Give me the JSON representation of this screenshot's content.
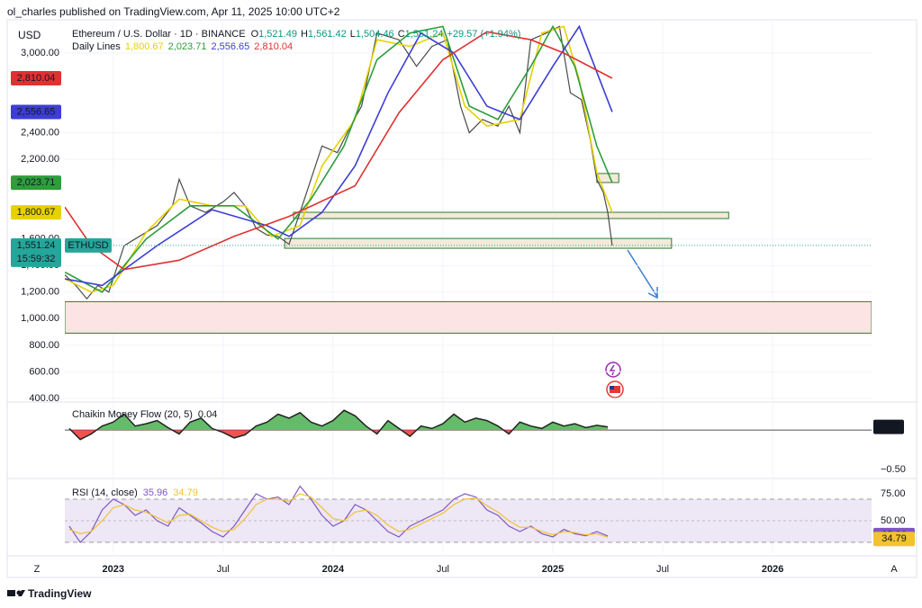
{
  "header": {
    "publisher": "ol_charles published on TradingView.com, Apr 11, 2025 10:00 UTC+2"
  },
  "footer": {
    "brand": "TradingView",
    "left_button": "Z",
    "right_button": "A"
  },
  "chart_data": [
    {
      "type": "line",
      "currency": "USD",
      "title": "Ethereum / U.S. Dollar · 1D · BINANCE",
      "ohlc_keys": [
        "O",
        "H",
        "L",
        "C"
      ],
      "ohlc": [
        1521.49,
        1561.42,
        1504.46,
        1551.24
      ],
      "ohlc_labels": [
        "1,521.49",
        "1,561.42",
        "1,504.46",
        "1,551.24"
      ],
      "change_label": "+29.57 (+1.94%)",
      "overlay_title": "Daily Lines",
      "symbol": "ETHUSD",
      "countdown": "15:59:32",
      "xlim": [
        2022.78,
        2026.45
      ],
      "xticks": [
        2023,
        {
          "value": 2023.5,
          "label": "Jul"
        },
        2024,
        {
          "value": 2024.5,
          "label": "Jul"
        },
        2025,
        {
          "value": 2025.5,
          "label": "Jul"
        },
        2026
      ],
      "ylim": [
        386,
        3230
      ],
      "yticks": [
        {
          "value": 400,
          "label": "400.00"
        },
        {
          "value": 600,
          "label": "600.00"
        },
        {
          "value": 800,
          "label": "800.00"
        },
        {
          "value": 1000,
          "label": "1,000.00"
        },
        {
          "value": 1200,
          "label": "1,200.00"
        },
        {
          "value": 1400,
          "label": "1,400.00"
        },
        {
          "value": 1600,
          "label": "1,600.00"
        },
        {
          "value": 2200,
          "label": "2,200.00"
        },
        {
          "value": 2400,
          "label": "2,400.00"
        },
        {
          "value": 3000,
          "label": "3,000.00"
        }
      ],
      "zones": [
        {
          "xlim": [
            2023.82,
            2025.8
          ],
          "ylim": [
            1754,
            1801
          ],
          "color": "#f3ead9"
        },
        {
          "xlim": [
            2023.78,
            2025.54
          ],
          "ylim": [
            1530,
            1604
          ],
          "color": "#f3ead9"
        },
        {
          "xlim": [
            2025.2,
            2025.3
          ],
          "ylim": [
            2025,
            2093
          ],
          "color": "#f3ead9"
        },
        {
          "xlim": [
            2022.78,
            2026.45
          ],
          "ylim": [
            891,
            1128
          ],
          "color": "#fde4e4"
        }
      ],
      "series": [
        {
          "name": "ETHUSD",
          "color": "#4a4a4a",
          "x": [
            2022.78,
            2022.83,
            2022.88,
            2022.93,
            2022.98,
            2023.05,
            2023.1,
            2023.15,
            2023.2,
            2023.27,
            2023.3,
            2023.35,
            2023.42,
            2023.5,
            2023.55,
            2023.6,
            2023.65,
            2023.7,
            2023.75,
            2023.8,
            2023.85,
            2023.9,
            2023.95,
            2024.02,
            2024.08,
            2024.13,
            2024.2,
            2024.3,
            2024.38,
            2024.45,
            2024.52,
            2024.58,
            2024.62,
            2024.68,
            2024.75,
            2024.8,
            2024.85,
            2024.9,
            2024.97,
            2025.03,
            2025.08,
            2025.13,
            2025.17,
            2025.2,
            2025.23,
            2025.25,
            2025.27
          ],
          "values": [
            1330,
            1250,
            1150,
            1250,
            1200,
            1550,
            1600,
            1650,
            1700,
            1850,
            2050,
            1850,
            1800,
            1880,
            1950,
            1850,
            1680,
            1630,
            1620,
            1560,
            1800,
            2050,
            2300,
            2250,
            2450,
            2600,
            3150,
            3100,
            2900,
            3050,
            3100,
            2600,
            2400,
            2500,
            2450,
            2600,
            2400,
            3100,
            3150,
            3200,
            2700,
            2650,
            2350,
            2050,
            1950,
            1800,
            1551.24
          ]
        },
        {
          "color": "#e6d200",
          "last_label": "1,800.67",
          "x": [
            2022.78,
            2022.9,
            2023.0,
            2023.15,
            2023.3,
            2023.45,
            2023.6,
            2023.72,
            2023.85,
            2023.95,
            2024.1,
            2024.2,
            2024.35,
            2024.5,
            2024.6,
            2024.7,
            2024.85,
            2024.95,
            2025.05,
            2025.12,
            2025.2,
            2025.27
          ],
          "values": [
            1300,
            1200,
            1250,
            1650,
            1900,
            1850,
            1850,
            1620,
            1700,
            2150,
            2500,
            3100,
            3050,
            3150,
            2600,
            2450,
            2500,
            3150,
            3200,
            2800,
            2100,
            1800.67
          ]
        },
        {
          "color": "#2e9d3a",
          "last_label": "2,023.71",
          "x": [
            2022.78,
            2022.95,
            2023.15,
            2023.35,
            2023.55,
            2023.75,
            2023.9,
            2024.05,
            2024.2,
            2024.35,
            2024.5,
            2024.62,
            2024.75,
            2024.9,
            2025.0,
            2025.1,
            2025.2,
            2025.27
          ],
          "values": [
            1350,
            1200,
            1600,
            1850,
            1850,
            1600,
            1900,
            2300,
            2950,
            3150,
            3200,
            2600,
            2500,
            2900,
            3200,
            2900,
            2300,
            2023.71
          ]
        },
        {
          "color": "#3d3dd6",
          "last_label": "2,556.65",
          "x": [
            2022.78,
            2022.95,
            2023.2,
            2023.45,
            2023.7,
            2023.8,
            2023.95,
            2024.1,
            2024.25,
            2024.4,
            2024.55,
            2024.7,
            2024.85,
            2025.0,
            2025.12,
            2025.27
          ],
          "values": [
            1300,
            1250,
            1550,
            1820,
            1700,
            1620,
            1800,
            2150,
            2700,
            3150,
            3000,
            2600,
            2500,
            2900,
            3200,
            2556.65
          ]
        },
        {
          "color": "#e03131",
          "last_label": "2,810.04",
          "x": [
            2022.78,
            2022.9,
            2023.05,
            2023.3,
            2023.55,
            2023.8,
            2024.1,
            2024.3,
            2024.5,
            2024.7,
            2024.9,
            2025.05,
            2025.27
          ],
          "values": [
            1840,
            1550,
            1370,
            1440,
            1620,
            1770,
            2000,
            2550,
            2950,
            3160,
            3100,
            3000,
            2810.04
          ]
        }
      ]
    },
    {
      "type": "area",
      "title": "Chaikin Money Flow (20, 5)",
      "colors": {
        "positive": "#66bb6a",
        "negative": "#ef5350",
        "line": "#222"
      },
      "xlim": [
        2022.78,
        2026.45
      ],
      "ylim": [
        -0.59,
        0.32
      ],
      "yticks": [
        {
          "value": -0.5,
          "label": "−0.50"
        }
      ],
      "x": [
        2022.8,
        2022.85,
        2022.9,
        2022.95,
        2023.0,
        2023.05,
        2023.1,
        2023.15,
        2023.2,
        2023.25,
        2023.3,
        2023.35,
        2023.4,
        2023.45,
        2023.5,
        2023.55,
        2023.6,
        2023.65,
        2023.7,
        2023.75,
        2023.8,
        2023.85,
        2023.9,
        2023.95,
        2024.0,
        2024.05,
        2024.1,
        2024.15,
        2024.2,
        2024.25,
        2024.3,
        2024.35,
        2024.4,
        2024.45,
        2024.5,
        2024.55,
        2024.6,
        2024.65,
        2024.7,
        2024.75,
        2024.8,
        2024.85,
        2024.9,
        2024.95,
        2025.0,
        2025.05,
        2025.1,
        2025.15,
        2025.2,
        2025.25
      ],
      "values": [
        0.02,
        -0.12,
        -0.05,
        0.05,
        0.1,
        0.2,
        0.05,
        0.08,
        0.12,
        0.03,
        -0.05,
        0.1,
        0.15,
        0.02,
        -0.03,
        -0.1,
        -0.06,
        0.05,
        0.1,
        0.2,
        0.15,
        0.22,
        0.1,
        0.05,
        0.12,
        0.25,
        0.18,
        0.05,
        -0.05,
        0.12,
        0.02,
        -0.08,
        0.05,
        0.02,
        0.08,
        0.2,
        0.1,
        0.15,
        0.12,
        0.05,
        -0.05,
        0.1,
        0.05,
        0.02,
        0.1,
        0.05,
        0.08,
        0.03,
        0.06,
        0.04
      ]
    },
    {
      "type": "line",
      "title": "RSI (14, close)",
      "band": [
        30,
        70
      ],
      "band_color": "#ede7f6",
      "xlim": [
        2022.78,
        2026.45
      ],
      "ylim": [
        20,
        86.7
      ],
      "yticks": [
        {
          "value": 75,
          "label": "75.00"
        },
        {
          "value": 50,
          "label": "50.00"
        }
      ],
      "x": [
        2022.8,
        2022.85,
        2022.9,
        2022.95,
        2023.0,
        2023.05,
        2023.1,
        2023.15,
        2023.2,
        2023.25,
        2023.3,
        2023.35,
        2023.4,
        2023.45,
        2023.5,
        2023.55,
        2023.6,
        2023.65,
        2023.7,
        2023.75,
        2023.8,
        2023.85,
        2023.9,
        2023.95,
        2024.0,
        2024.05,
        2024.1,
        2024.15,
        2024.2,
        2024.25,
        2024.3,
        2024.35,
        2024.4,
        2024.45,
        2024.5,
        2024.55,
        2024.6,
        2024.65,
        2024.7,
        2024.75,
        2024.8,
        2024.85,
        2024.9,
        2024.95,
        2025.0,
        2025.05,
        2025.1,
        2025.15,
        2025.2,
        2025.25
      ],
      "series": [
        {
          "color": "#7e57c2",
          "values": [
            45,
            30,
            40,
            60,
            70,
            65,
            55,
            60,
            50,
            45,
            62,
            55,
            48,
            40,
            35,
            45,
            60,
            75,
            70,
            72,
            65,
            82,
            70,
            55,
            45,
            50,
            65,
            60,
            50,
            40,
            35,
            45,
            50,
            55,
            60,
            70,
            75,
            72,
            60,
            55,
            45,
            40,
            45,
            38,
            35,
            42,
            38,
            36,
            40,
            35.96
          ]
        },
        {
          "color": "#f2c230",
          "values": [
            42,
            38,
            40,
            50,
            62,
            65,
            60,
            58,
            53,
            48,
            55,
            56,
            50,
            44,
            40,
            42,
            52,
            65,
            70,
            70,
            68,
            75,
            72,
            62,
            52,
            50,
            58,
            60,
            55,
            46,
            40,
            42,
            47,
            52,
            57,
            65,
            70,
            71,
            64,
            58,
            50,
            44,
            44,
            40,
            37,
            40,
            39,
            37,
            38,
            34.79
          ]
        }
      ]
    }
  ]
}
